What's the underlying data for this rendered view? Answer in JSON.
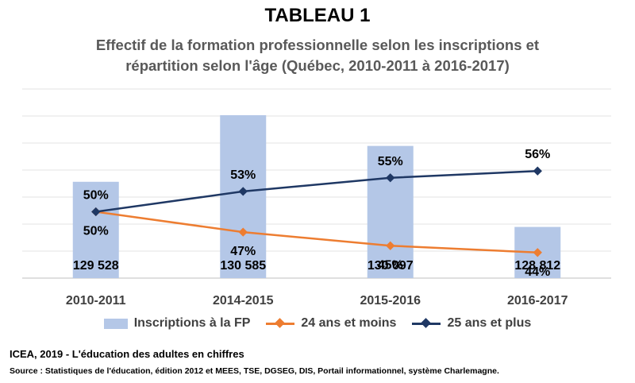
{
  "header": {
    "title": "TABLEAU 1",
    "subtitle_line1": "Effectif de la formation professionnelle selon les inscriptions et",
    "subtitle_line2": "répartition selon l'âge (Québec, 2010-2011 à 2016-2017)"
  },
  "chart_data": {
    "type": "bar",
    "categories": [
      "2010-2011",
      "2014-2015",
      "2015-2016",
      "2016-2017"
    ],
    "series": [
      {
        "name": "Inscriptions à la FP",
        "type": "bar",
        "values": [
          129528,
          130585,
          130097,
          128812
        ],
        "labels": [
          "129 528",
          "130 585",
          "130 097",
          "128 812"
        ],
        "color": "#b4c7e7"
      },
      {
        "name": "24 ans et moins",
        "type": "line",
        "values": [
          50,
          47,
          45,
          44
        ],
        "labels": [
          "50%",
          "47%",
          "45%",
          "44%"
        ],
        "color": "#ed7d31"
      },
      {
        "name": "25 ans et plus",
        "type": "line",
        "values": [
          50,
          53,
          55,
          56
        ],
        "labels": [
          "50%",
          "53%",
          "55%",
          "56%"
        ],
        "color": "#1f3864"
      }
    ],
    "legend_position": "bottom",
    "grid": true
  },
  "footer": {
    "source_short": "ICEA, 2019 - L'éducation des adultes en chiffres",
    "source_full": "Source : Statistiques de l'éducation, édition 2012 et MEES, TSE, DGSEG, DIS, Portail informationnel,  système Charlemagne."
  }
}
